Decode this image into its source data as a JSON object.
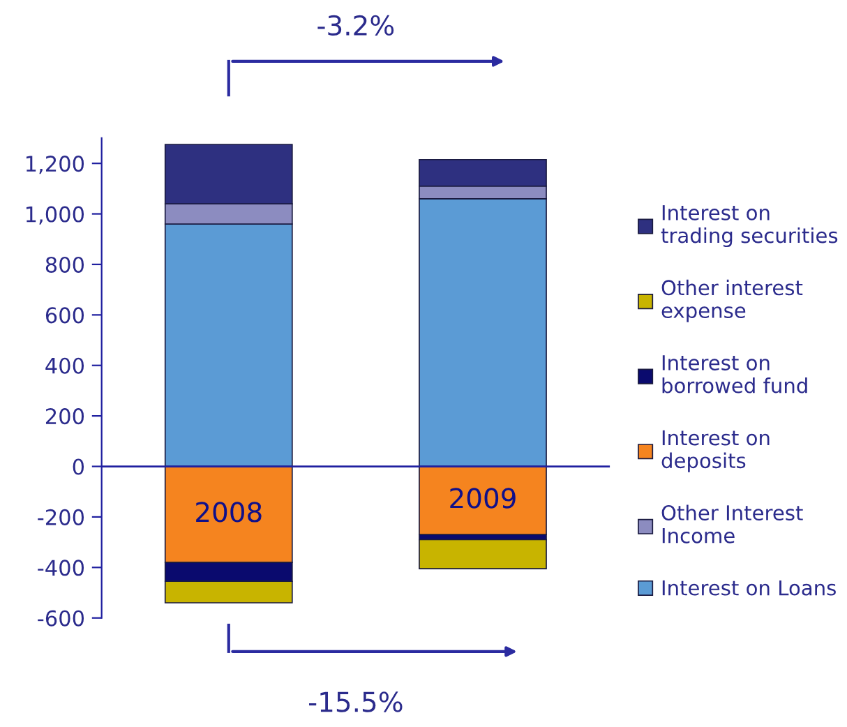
{
  "chart_data": {
    "type": "bar",
    "stacked": true,
    "categories": [
      "2008",
      "2009"
    ],
    "series": [
      {
        "name": "Interest on Loans",
        "color": "#5b9bd5",
        "values": [
          960,
          1060
        ]
      },
      {
        "name": "Other Interest\nIncome",
        "color": "#8c8cc0",
        "values": [
          80,
          50
        ]
      },
      {
        "name": "Interest on\ndeposits",
        "color": "#f5841f",
        "values": [
          -380,
          -270
        ]
      },
      {
        "name": "Interest on\nborrowed fund",
        "color": "#0a0a6e",
        "values": [
          -75,
          -20
        ]
      },
      {
        "name": "Other interest\nexpense",
        "color": "#c8b400",
        "values": [
          -85,
          -115
        ]
      },
      {
        "name": "Interest on\ntrading securities",
        "color": "#2e3080",
        "values": [
          235,
          105
        ]
      }
    ],
    "ylim": [
      -600,
      1300
    ],
    "yticks": [
      -600,
      -400,
      -200,
      0,
      200,
      400,
      600,
      800,
      {
        "value": 1000,
        "label": "1,000"
      },
      {
        "value": 1200,
        "label": "1,200"
      }
    ],
    "ref_lines": [
      {
        "axis": "y",
        "value": 0,
        "color": "#2020a0"
      }
    ],
    "grid": false,
    "legend": "right",
    "annotations": [
      "-3.2%",
      "-15.5%"
    ]
  }
}
